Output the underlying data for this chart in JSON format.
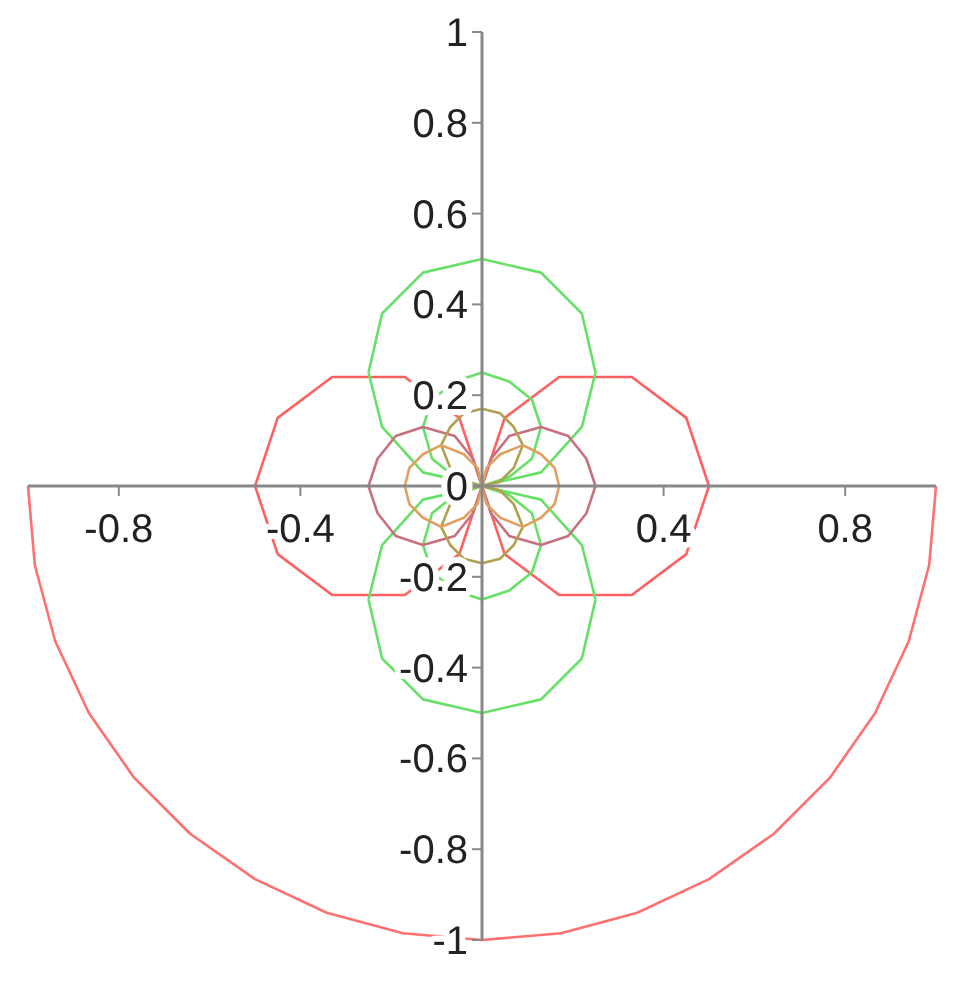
{
  "chart_data": {
    "type": "line",
    "xlim": [
      -1,
      1
    ],
    "ylim": [
      -1,
      1
    ],
    "xticks": [
      -0.8,
      -0.4,
      0.4,
      0.8
    ],
    "yticks": [
      -1,
      -0.8,
      -0.6,
      -0.4,
      -0.2,
      0,
      0.2,
      0.4,
      0.6,
      0.8,
      1
    ],
    "line_style": "solid",
    "marker": "none",
    "series": [
      {
        "color": "#ff7070",
        "x": [
          -1,
          -0.985,
          -0.94,
          -0.866,
          -0.766,
          -0.643,
          -0.5,
          -0.342,
          -0.174,
          0,
          0.174,
          0.342,
          0.5,
          0.643,
          0.766,
          0.866,
          0.94,
          0.985,
          1
        ],
        "values": [
          0,
          -0.174,
          -0.342,
          -0.5,
          -0.643,
          -0.766,
          -0.866,
          -0.94,
          -0.985,
          -1,
          -0.985,
          -0.94,
          -0.866,
          -0.766,
          -0.643,
          -0.5,
          -0.342,
          -0.174,
          0
        ]
      },
      {
        "color": "#ff6060",
        "x": [
          -0.5,
          -0.45,
          -0.33,
          -0.17,
          -0.05,
          0,
          0.05,
          0.17,
          0.33,
          0.45,
          0.5
        ],
        "values": [
          0,
          0.15,
          0.24,
          0.24,
          0.15,
          0,
          0.15,
          0.24,
          0.24,
          0.15,
          0
        ]
      },
      {
        "color": "#ff6060",
        "x": [
          -0.5,
          -0.45,
          -0.33,
          -0.17,
          -0.05,
          0,
          0.05,
          0.17,
          0.33,
          0.45,
          0.5
        ],
        "values": [
          0,
          -0.15,
          -0.24,
          -0.24,
          -0.15,
          0,
          -0.15,
          -0.24,
          -0.24,
          -0.15,
          0
        ]
      },
      {
        "color": "#66e066",
        "x": [
          -0.25,
          -0.22,
          -0.13,
          0,
          0.13,
          0.22,
          0.25
        ],
        "values": [
          0.25,
          0.38,
          0.47,
          0.5,
          0.47,
          0.38,
          0.25
        ]
      },
      {
        "color": "#66e066",
        "x": [
          -0.25,
          -0.22,
          -0.13,
          0,
          0.13,
          0.22,
          0.25
        ],
        "values": [
          0.25,
          0.13,
          0.03,
          0,
          0.03,
          0.13,
          0.25
        ]
      },
      {
        "color": "#66e066",
        "x": [
          -0.25,
          -0.22,
          -0.13,
          0,
          0.13,
          0.22,
          0.25
        ],
        "values": [
          -0.25,
          -0.13,
          -0.03,
          0,
          -0.03,
          -0.13,
          -0.25
        ]
      },
      {
        "color": "#66e066",
        "x": [
          -0.25,
          -0.22,
          -0.13,
          0,
          0.13,
          0.22,
          0.25
        ],
        "values": [
          -0.25,
          -0.38,
          -0.47,
          -0.5,
          -0.47,
          -0.38,
          -0.25
        ]
      },
      {
        "color": "#66e066",
        "x": [
          -0.13,
          -0.11,
          -0.06,
          0,
          0.06,
          0.11,
          0.13
        ],
        "values": [
          0.13,
          0.19,
          0.23,
          0.25,
          0.23,
          0.19,
          0.13
        ]
      },
      {
        "color": "#66e066",
        "x": [
          -0.13,
          -0.11,
          -0.06,
          0,
          0.06,
          0.11,
          0.13
        ],
        "values": [
          0.13,
          0.06,
          0.02,
          0,
          0.02,
          0.06,
          0.13
        ]
      },
      {
        "color": "#66e066",
        "x": [
          -0.13,
          -0.11,
          -0.06,
          0,
          0.06,
          0.11,
          0.13
        ],
        "values": [
          -0.13,
          -0.06,
          -0.02,
          0,
          -0.02,
          -0.06,
          -0.13
        ]
      },
      {
        "color": "#66e066",
        "x": [
          -0.13,
          -0.11,
          -0.06,
          0,
          0.06,
          0.11,
          0.13
        ],
        "values": [
          -0.13,
          -0.19,
          -0.23,
          -0.25,
          -0.23,
          -0.19,
          -0.13
        ]
      },
      {
        "color": "#c87080",
        "x": [
          -0.25,
          -0.23,
          -0.19,
          -0.13,
          -0.06,
          -0.02,
          0,
          0.02,
          0.06,
          0.13,
          0.19,
          0.23,
          0.25
        ],
        "values": [
          0,
          0.06,
          0.11,
          0.13,
          0.11,
          0.06,
          0,
          0.06,
          0.11,
          0.13,
          0.11,
          0.06,
          0
        ]
      },
      {
        "color": "#c87080",
        "x": [
          -0.25,
          -0.23,
          -0.19,
          -0.13,
          -0.06,
          -0.02,
          0,
          0.02,
          0.06,
          0.13,
          0.19,
          0.23,
          0.25
        ],
        "values": [
          0,
          -0.06,
          -0.11,
          -0.13,
          -0.11,
          -0.06,
          0,
          -0.06,
          -0.11,
          -0.13,
          -0.11,
          -0.06,
          0
        ]
      },
      {
        "color": "#b0a050",
        "x": [
          -0.09,
          -0.07,
          -0.04,
          0,
          0.04,
          0.07,
          0.09
        ],
        "values": [
          0.09,
          0.13,
          0.16,
          0.17,
          0.16,
          0.13,
          0.09
        ]
      },
      {
        "color": "#b0a050",
        "x": [
          -0.09,
          -0.07,
          -0.04,
          0,
          0.04,
          0.07,
          0.09
        ],
        "values": [
          0.09,
          0.04,
          0.01,
          0,
          0.01,
          0.04,
          0.09
        ]
      },
      {
        "color": "#b0a050",
        "x": [
          -0.09,
          -0.07,
          -0.04,
          0,
          0.04,
          0.07,
          0.09
        ],
        "values": [
          -0.09,
          -0.04,
          -0.01,
          0,
          -0.01,
          -0.04,
          -0.09
        ]
      },
      {
        "color": "#b0a050",
        "x": [
          -0.09,
          -0.07,
          -0.04,
          0,
          0.04,
          0.07,
          0.09
        ],
        "values": [
          -0.09,
          -0.13,
          -0.16,
          -0.17,
          -0.16,
          -0.13,
          -0.09
        ]
      },
      {
        "color": "#e0a060",
        "x": [
          -0.17,
          -0.16,
          -0.13,
          -0.09,
          -0.04,
          -0.01,
          0,
          0.01,
          0.04,
          0.09,
          0.13,
          0.16,
          0.17
        ],
        "values": [
          0,
          0.04,
          0.07,
          0.09,
          0.07,
          0.04,
          0,
          0.04,
          0.07,
          0.09,
          0.07,
          0.04,
          0
        ]
      },
      {
        "color": "#e0a060",
        "x": [
          -0.17,
          -0.16,
          -0.13,
          -0.09,
          -0.04,
          -0.01,
          0,
          0.01,
          0.04,
          0.09,
          0.13,
          0.16,
          0.17
        ],
        "values": [
          0,
          -0.04,
          -0.07,
          -0.09,
          -0.07,
          -0.04,
          0,
          -0.04,
          -0.07,
          -0.09,
          -0.07,
          -0.04,
          0
        ]
      }
    ]
  }
}
